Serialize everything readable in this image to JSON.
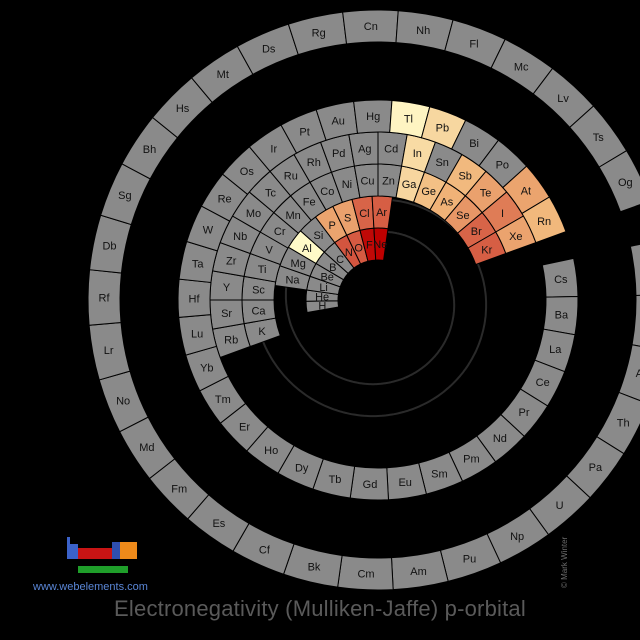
{
  "title": "Electronegativity (Mulliken-Jaffe) p-orbital",
  "credit": "© Mark Winter",
  "site_url": "www.webelements.com",
  "colors": {
    "background": "#000000",
    "no_data": "#8a8a8a",
    "ring_border": "#000000"
  },
  "chart_data": {
    "type": "heatmap",
    "layout": "spiral periodic table",
    "title": "Electronegativity (Mulliken-Jaffe) p-orbital",
    "color_scale": "pale yellow (low) to dark red (high); grey = no data",
    "elements": [
      {
        "symbol": "H",
        "value": null
      },
      {
        "symbol": "He",
        "value": null
      },
      {
        "symbol": "Li",
        "value": null
      },
      {
        "symbol": "Be",
        "value": null
      },
      {
        "symbol": "B",
        "value": null
      },
      {
        "symbol": "C",
        "value": null
      },
      {
        "symbol": "N",
        "value": 3.08
      },
      {
        "symbol": "O",
        "value": 3.04
      },
      {
        "symbol": "F",
        "value": 3.9
      },
      {
        "symbol": "Ne",
        "value": 4.0
      },
      {
        "symbol": "Na",
        "value": null
      },
      {
        "symbol": "Mg",
        "value": null
      },
      {
        "symbol": "Al",
        "value": 1.37
      },
      {
        "symbol": "Si",
        "value": null
      },
      {
        "symbol": "P",
        "value": 2.39
      },
      {
        "symbol": "S",
        "value": 2.41
      },
      {
        "symbol": "Cl",
        "value": 2.95
      },
      {
        "symbol": "Ar",
        "value": 3.0
      },
      {
        "symbol": "K",
        "value": null
      },
      {
        "symbol": "Ca",
        "value": null
      },
      {
        "symbol": "Sc",
        "value": null
      },
      {
        "symbol": "Ti",
        "value": null
      },
      {
        "symbol": "V",
        "value": null
      },
      {
        "symbol": "Cr",
        "value": null
      },
      {
        "symbol": "Mn",
        "value": null
      },
      {
        "symbol": "Fe",
        "value": null
      },
      {
        "symbol": "Co",
        "value": null
      },
      {
        "symbol": "Ni",
        "value": null
      },
      {
        "symbol": "Cu",
        "value": null
      },
      {
        "symbol": "Zn",
        "value": null
      },
      {
        "symbol": "Ga",
        "value": 1.82
      },
      {
        "symbol": "Ge",
        "value": 2.1
      },
      {
        "symbol": "As",
        "value": 2.26
      },
      {
        "symbol": "Se",
        "value": 2.51
      },
      {
        "symbol": "Br",
        "value": 2.95
      },
      {
        "symbol": "Kr",
        "value": 3.0
      },
      {
        "symbol": "Rb",
        "value": null
      },
      {
        "symbol": "Sr",
        "value": null
      },
      {
        "symbol": "Y",
        "value": null
      },
      {
        "symbol": "Zr",
        "value": null
      },
      {
        "symbol": "Nb",
        "value": null
      },
      {
        "symbol": "Mo",
        "value": null
      },
      {
        "symbol": "Tc",
        "value": null
      },
      {
        "symbol": "Ru",
        "value": null
      },
      {
        "symbol": "Rh",
        "value": null
      },
      {
        "symbol": "Pd",
        "value": null
      },
      {
        "symbol": "Ag",
        "value": null
      },
      {
        "symbol": "Cd",
        "value": null
      },
      {
        "symbol": "In",
        "value": 1.76
      },
      {
        "symbol": "Sn",
        "value": null
      },
      {
        "symbol": "Sb",
        "value": 2.18
      },
      {
        "symbol": "Te",
        "value": 2.41
      },
      {
        "symbol": "I",
        "value": 2.74
      },
      {
        "symbol": "Xe",
        "value": 2.4
      },
      {
        "symbol": "Cs",
        "value": null
      },
      {
        "symbol": "Ba",
        "value": null
      },
      {
        "symbol": "La",
        "value": null
      },
      {
        "symbol": "Ce",
        "value": null
      },
      {
        "symbol": "Pr",
        "value": null
      },
      {
        "symbol": "Nd",
        "value": null
      },
      {
        "symbol": "Pm",
        "value": null
      },
      {
        "symbol": "Sm",
        "value": null
      },
      {
        "symbol": "Eu",
        "value": null
      },
      {
        "symbol": "Gd",
        "value": null
      },
      {
        "symbol": "Tb",
        "value": null
      },
      {
        "symbol": "Dy",
        "value": null
      },
      {
        "symbol": "Ho",
        "value": null
      },
      {
        "symbol": "Er",
        "value": null
      },
      {
        "symbol": "Tm",
        "value": null
      },
      {
        "symbol": "Yb",
        "value": null
      },
      {
        "symbol": "Lu",
        "value": null
      },
      {
        "symbol": "Hf",
        "value": null
      },
      {
        "symbol": "Ta",
        "value": null
      },
      {
        "symbol": "W",
        "value": null
      },
      {
        "symbol": "Re",
        "value": null
      },
      {
        "symbol": "Os",
        "value": null
      },
      {
        "symbol": "Ir",
        "value": null
      },
      {
        "symbol": "Pt",
        "value": null
      },
      {
        "symbol": "Au",
        "value": null
      },
      {
        "symbol": "Hg",
        "value": null
      },
      {
        "symbol": "Tl",
        "value": 1.44
      },
      {
        "symbol": "Pb",
        "value": 1.81
      },
      {
        "symbol": "Bi",
        "value": null
      },
      {
        "symbol": "Po",
        "value": null
      },
      {
        "symbol": "At",
        "value": 2.39
      },
      {
        "symbol": "Rn",
        "value": 2.2
      },
      {
        "symbol": "Fr",
        "value": null
      },
      {
        "symbol": "Ra",
        "value": null
      },
      {
        "symbol": "Ac",
        "value": null
      },
      {
        "symbol": "Th",
        "value": null
      },
      {
        "symbol": "Pa",
        "value": null
      },
      {
        "symbol": "U",
        "value": null
      },
      {
        "symbol": "Np",
        "value": null
      },
      {
        "symbol": "Pu",
        "value": null
      },
      {
        "symbol": "Am",
        "value": null
      },
      {
        "symbol": "Cm",
        "value": null
      },
      {
        "symbol": "Bk",
        "value": null
      },
      {
        "symbol": "Cf",
        "value": null
      },
      {
        "symbol": "Es",
        "value": null
      },
      {
        "symbol": "Fm",
        "value": null
      },
      {
        "symbol": "Md",
        "value": null
      },
      {
        "symbol": "No",
        "value": null
      },
      {
        "symbol": "Lr",
        "value": null
      },
      {
        "symbol": "Rf",
        "value": null
      },
      {
        "symbol": "Db",
        "value": null
      },
      {
        "symbol": "Sg",
        "value": null
      },
      {
        "symbol": "Bh",
        "value": null
      },
      {
        "symbol": "Hs",
        "value": null
      },
      {
        "symbol": "Mt",
        "value": null
      },
      {
        "symbol": "Ds",
        "value": null
      },
      {
        "symbol": "Rg",
        "value": null
      },
      {
        "symbol": "Cn",
        "value": null
      },
      {
        "symbol": "Nh",
        "value": null
      },
      {
        "symbol": "Fl",
        "value": null
      },
      {
        "symbol": "Mc",
        "value": null
      },
      {
        "symbol": "Lv",
        "value": null
      },
      {
        "symbol": "Ts",
        "value": null
      },
      {
        "symbol": "Og",
        "value": null
      }
    ]
  }
}
